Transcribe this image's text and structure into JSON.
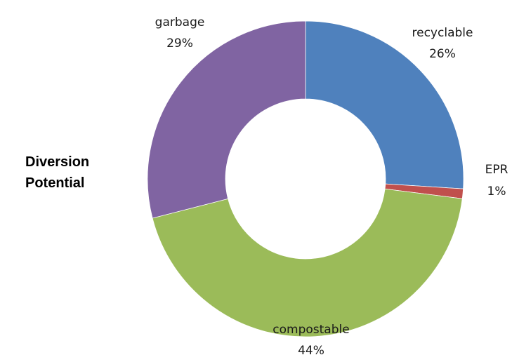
{
  "chart_data": {
    "type": "pie",
    "subtype": "donut",
    "title_lines": [
      "Diversion",
      "Potential"
    ],
    "legend": "none",
    "slices": [
      {
        "label": "recyclable",
        "value": 26,
        "value_label": "26%",
        "color": "#4F81BD"
      },
      {
        "label": "EPR",
        "value": 1,
        "value_label": "1%",
        "color": "#C0504D"
      },
      {
        "label": "compostable",
        "value": 44,
        "value_label": "44%",
        "color": "#9BBB59"
      },
      {
        "label": "garbage",
        "value": 29,
        "value_label": "29%",
        "color": "#8064A2"
      }
    ]
  }
}
